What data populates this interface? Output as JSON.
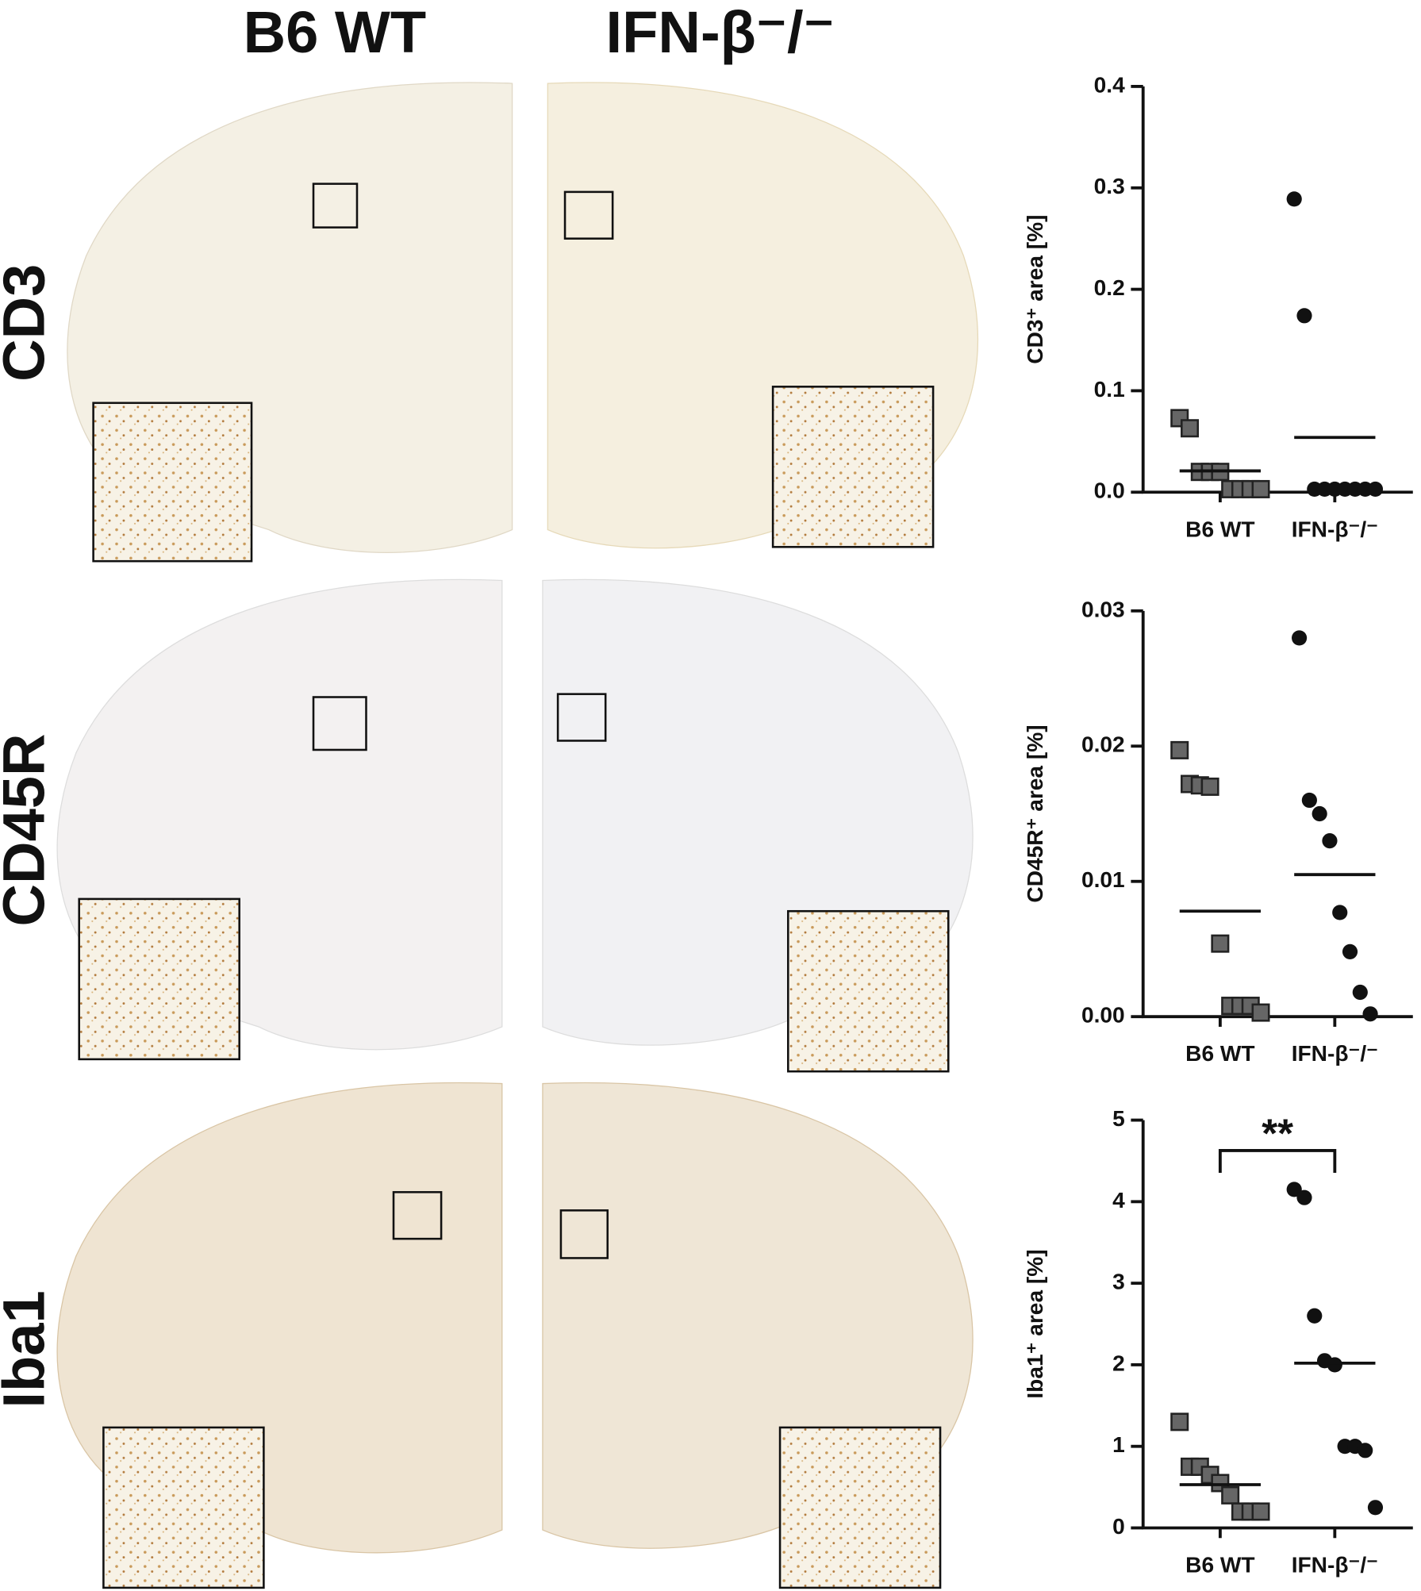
{
  "column_labels": [
    "B6 WT",
    "IFN-β⁻/⁻"
  ],
  "row_labels": [
    "CD3",
    "CD45R",
    "Iba1"
  ],
  "chart_data": [
    {
      "type": "dot",
      "categories": [
        "B6 WT",
        "IFN-β⁻/⁻"
      ],
      "y_label": "CD3⁺ area [%]",
      "colors": [
        "#666666",
        "#111111"
      ],
      "markers": [
        "square",
        "circle"
      ],
      "values": [
        [
          0.073,
          0.063,
          0.02,
          0.02,
          0.02,
          0.003,
          0.003,
          0.003,
          0.003
        ],
        [
          0.289,
          0.174,
          0.003,
          0.003,
          0.003,
          0.003,
          0.003,
          0.003,
          0.003
        ]
      ],
      "center_values": [
        0.021,
        0.054
      ],
      "ylim": [
        0,
        0.4
      ],
      "yticks": [
        {
          "value": 0,
          "label": "0.0"
        },
        0.1,
        0.2,
        0.3,
        0.4
      ]
    },
    {
      "type": "dot",
      "categories": [
        "B6 WT",
        "IFN-β⁻/⁻"
      ],
      "y_label": "CD45R⁺ area [%]",
      "colors": [
        "#666666",
        "#111111"
      ],
      "markers": [
        "square",
        "circle"
      ],
      "values": [
        [
          0.0197,
          0.0172,
          0.0171,
          0.017,
          0.0054,
          0.0008,
          0.0008,
          0.0008,
          0.0003
        ],
        [
          0.028,
          0.016,
          0.015,
          0.013,
          0.0077,
          0.0048,
          0.0018,
          0.0002
        ]
      ],
      "center_values": [
        0.0078,
        0.0105
      ],
      "ylim": [
        0,
        0.03
      ],
      "yticks": [
        {
          "value": 0,
          "label": "0.00"
        },
        {
          "value": 0.01,
          "label": "0.01"
        },
        {
          "value": 0.02,
          "label": "0.02"
        },
        {
          "value": 0.03,
          "label": "0.03"
        }
      ]
    },
    {
      "type": "dot",
      "categories": [
        "B6 WT",
        "IFN-β⁻/⁻"
      ],
      "y_label": "Iba1⁺ area [%]",
      "colors": [
        "#666666",
        "#111111"
      ],
      "markers": [
        "square",
        "circle"
      ],
      "values": [
        [
          1.3,
          0.75,
          0.75,
          0.65,
          0.55,
          0.4,
          0.2,
          0.2,
          0.2
        ],
        [
          4.15,
          4.05,
          2.6,
          2.05,
          2.0,
          1.0,
          1.0,
          0.95,
          0.25
        ]
      ],
      "center_values": [
        0.53,
        2.02
      ],
      "annotation": "**",
      "ylim": [
        0,
        5
      ],
      "yticks": [
        0,
        1,
        2,
        3,
        4,
        5
      ]
    }
  ]
}
